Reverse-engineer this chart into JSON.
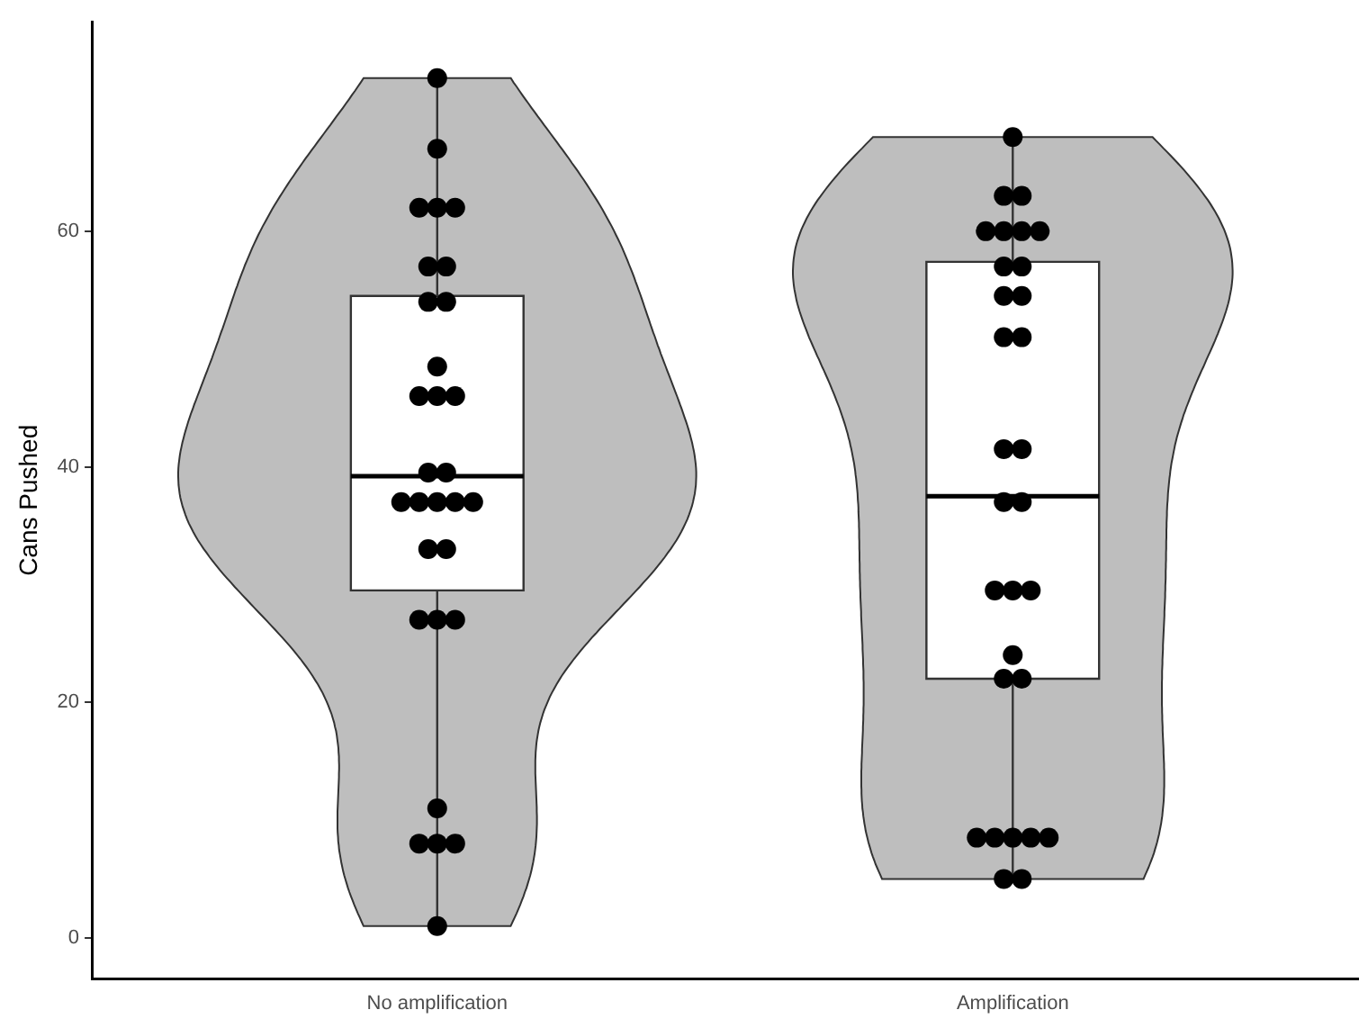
{
  "chart_data": {
    "type": "box",
    "ylabel": "Cans Pushed",
    "categories": [
      "No amplification",
      "Amplification"
    ],
    "boxes": [
      {
        "low": 1,
        "q1": 29.5,
        "median": 39.2,
        "q3": 54.5,
        "high": 73
      },
      {
        "low": 5,
        "q1": 22,
        "median": 37.5,
        "q3": 57.4,
        "high": 68
      }
    ],
    "series": [
      {
        "type": "scatter",
        "color": "#000000",
        "x": [
          "No amplification",
          "No amplification",
          "No amplification",
          "No amplification",
          "No amplification",
          "No amplification",
          "No amplification",
          "No amplification",
          "No amplification",
          "No amplification",
          "No amplification",
          "No amplification",
          "No amplification",
          "No amplification",
          "No amplification",
          "No amplification",
          "No amplification",
          "No amplification",
          "No amplification",
          "No amplification",
          "No amplification",
          "No amplification",
          "No amplification",
          "No amplification",
          "No amplification",
          "No amplification",
          "No amplification",
          "No amplification",
          "No amplification",
          "No amplification",
          "Amplification",
          "Amplification",
          "Amplification",
          "Amplification",
          "Amplification",
          "Amplification",
          "Amplification",
          "Amplification",
          "Amplification",
          "Amplification",
          "Amplification",
          "Amplification",
          "Amplification",
          "Amplification",
          "Amplification",
          "Amplification",
          "Amplification",
          "Amplification",
          "Amplification",
          "Amplification",
          "Amplification",
          "Amplification",
          "Amplification",
          "Amplification",
          "Amplification",
          "Amplification",
          "Amplification",
          "Amplification",
          "Amplification",
          "Amplification"
        ],
        "values": [
          73,
          67,
          62,
          62,
          62,
          57,
          57,
          54,
          54,
          48.5,
          46,
          46,
          46,
          39.5,
          39.5,
          37,
          37,
          37,
          37,
          37,
          33,
          33,
          27,
          27,
          27,
          11,
          8,
          8,
          8,
          1,
          68,
          63,
          63,
          60,
          60,
          60,
          60,
          57,
          57,
          54.5,
          54.5,
          51,
          51,
          41.5,
          41.5,
          37,
          37,
          29.5,
          29.5,
          29.5,
          24,
          22,
          22,
          8.5,
          8.5,
          8.5,
          8.5,
          8.5,
          5,
          5
        ]
      }
    ],
    "ylim": [
      -3.5,
      77.8
    ],
    "yticks": [
      0,
      20,
      40,
      60
    ],
    "grid": false,
    "legend": false,
    "marker": "circle"
  }
}
